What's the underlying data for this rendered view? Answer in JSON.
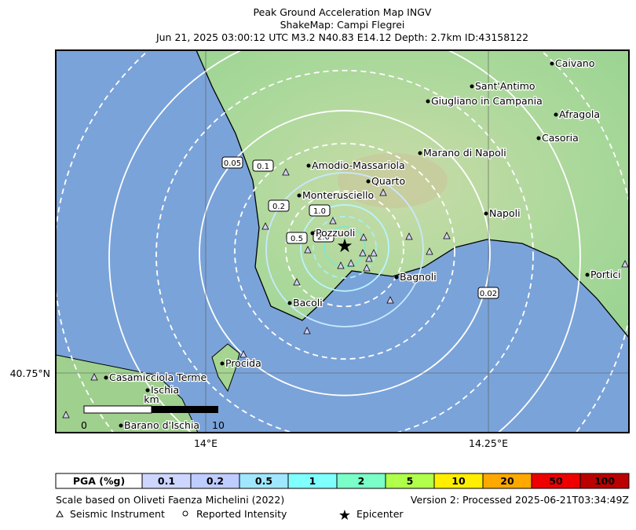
{
  "header": {
    "title": "Peak Ground Acceleration Map INGV",
    "subtitle": "ShakeMap: Campi Flegrei",
    "event": "Jun 21, 2025 03:00:12 UTC M3.2 N40.83 E14.12 Depth: 2.7km ID:43158122"
  },
  "map": {
    "places": [
      "Caivano",
      "Sant'Antimo",
      "Giugliano in Campania",
      "Afragola",
      "Casoria",
      "Marano di Napoli",
      "Amodio-Massariola",
      "Quarto",
      "Monterusciello",
      "Napoli",
      "Pozzuoli",
      "Bagnoli",
      "Portici",
      "Bacoli",
      "Procida",
      "Casamicciola Terme",
      "Ischia",
      "Barano d'Ischia"
    ],
    "contour_labels": [
      "0.05",
      "0.1",
      "0.2",
      "1.0",
      "0.5",
      "2.0",
      "0.02"
    ],
    "lat_label": "40.75°N",
    "lon_labels": [
      "14°E",
      "14.25°E"
    ],
    "scale": {
      "unit": "km",
      "start": "0",
      "end": "10"
    }
  },
  "pga_scale": {
    "header": "PGA (%g)",
    "levels": [
      "0.1",
      "0.2",
      "0.5",
      "1",
      "2",
      "5",
      "10",
      "20",
      "50",
      "100"
    ]
  },
  "footer": {
    "scale_note": "Scale based on Oliveti Faenza Michelini (2022)",
    "version": "Version 2: Processed 2025-06-21T03:34:49Z",
    "legend": [
      "Seismic Instrument",
      "Reported Intensity",
      "Epicenter"
    ]
  }
}
